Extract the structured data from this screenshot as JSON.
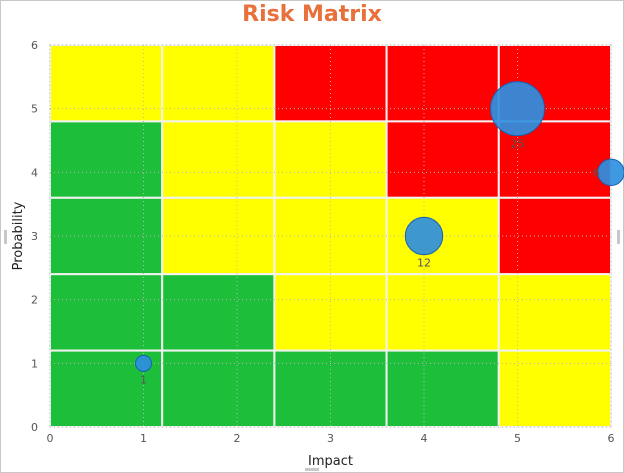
{
  "chart_data": {
    "type": "scatter",
    "subtype": "bubble-on-heatmap",
    "title": "Risk Matrix",
    "xlabel": "Impact",
    "ylabel": "Probability",
    "xlim": [
      0,
      6
    ],
    "ylim": [
      0,
      6
    ],
    "xticks": [
      0,
      1,
      2,
      3,
      4,
      5,
      6
    ],
    "yticks": [
      0,
      1,
      2,
      3,
      4,
      5,
      6
    ],
    "grid": true,
    "grid_style": "dotted",
    "cells": {
      "columns": 5,
      "rows": 5,
      "rows_top_to_bottom": [
        [
          "yellow",
          "yellow",
          "red",
          "red",
          "red"
        ],
        [
          "green",
          "yellow",
          "yellow",
          "red",
          "red"
        ],
        [
          "green",
          "yellow",
          "yellow",
          "yellow",
          "red"
        ],
        [
          "green",
          "green",
          "yellow",
          "yellow",
          "yellow"
        ],
        [
          "green",
          "green",
          "green",
          "green",
          "yellow"
        ]
      ]
    },
    "palette": {
      "green": "#1dbf3a",
      "yellow": "#ffff00",
      "red": "#ff0000",
      "bubble": "#2e8fe0",
      "bubble_edge": "#1a5fb0"
    },
    "points": [
      {
        "x": 1,
        "y": 1,
        "size": 1,
        "label": "1"
      },
      {
        "x": 4,
        "y": 3,
        "size": 12,
        "label": "12"
      },
      {
        "x": 5,
        "y": 5,
        "size": 25,
        "label": "25"
      },
      {
        "x": 6,
        "y": 4,
        "size": 6,
        "label": "6"
      }
    ]
  }
}
